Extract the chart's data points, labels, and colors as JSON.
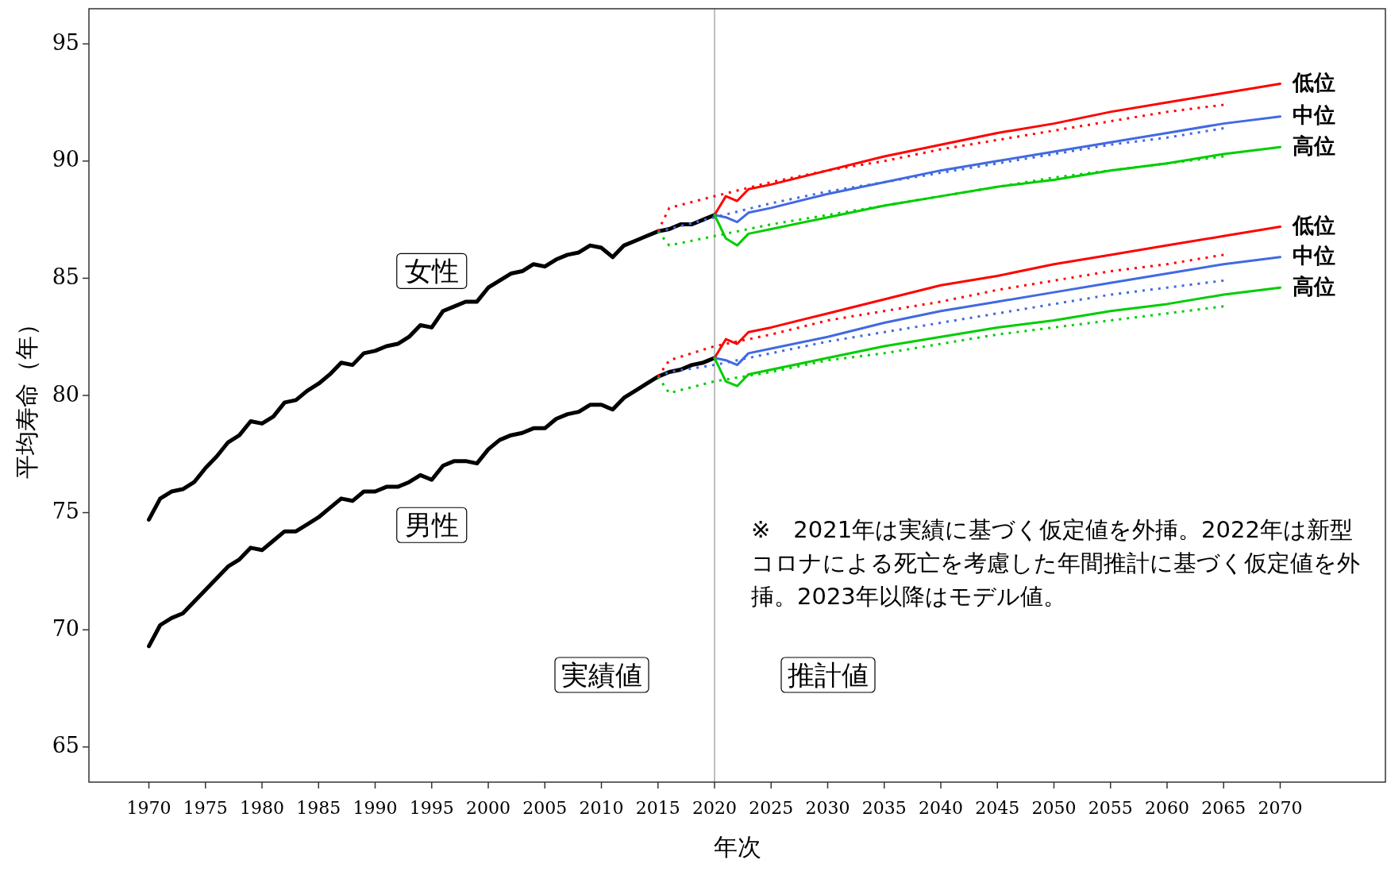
{
  "chart_data": {
    "type": "line",
    "xlabel": "年次",
    "ylabel": "平均寿命（年）",
    "xlim": [
      1964.7,
      2079.3
    ],
    "ylim": [
      63.5,
      96.5
    ],
    "xticks": [
      1970,
      1975,
      1980,
      1985,
      1990,
      1995,
      2000,
      2005,
      2010,
      2015,
      2020,
      2025,
      2030,
      2035,
      2040,
      2045,
      2050,
      2055,
      2060,
      2065,
      2070
    ],
    "yticks": [
      65,
      70,
      75,
      80,
      85,
      90,
      95
    ],
    "ref_lines": [
      {
        "axis": "x",
        "value": 2020,
        "color": "#bebebe"
      }
    ],
    "annotations": [
      "実績値",
      "推計値",
      "※　2021年は実績に基づく仮定値を外挿。2022年は新型コロナによる死亡を考慮した年間推計に基づく仮定値を外挿。2023年以降はモデル値。"
    ],
    "series": [
      {
        "name": "女性",
        "color": "#000000",
        "x": [
          1970,
          1971,
          1972,
          1973,
          1974,
          1975,
          1976,
          1977,
          1978,
          1979,
          1980,
          1981,
          1982,
          1983,
          1984,
          1985,
          1986,
          1987,
          1988,
          1989,
          1990,
          1991,
          1992,
          1993,
          1994,
          1995,
          1996,
          1997,
          1998,
          1999,
          2000,
          2001,
          2002,
          2003,
          2004,
          2005,
          2006,
          2007,
          2008,
          2009,
          2010,
          2011,
          2012,
          2013,
          2014,
          2015,
          2016,
          2017,
          2018,
          2019,
          2020
        ],
        "values": [
          74.7,
          75.6,
          75.9,
          76.0,
          76.3,
          76.9,
          77.4,
          78.0,
          78.3,
          78.9,
          78.8,
          79.1,
          79.7,
          79.8,
          80.2,
          80.5,
          80.9,
          81.4,
          81.3,
          81.8,
          81.9,
          82.1,
          82.2,
          82.5,
          83.0,
          82.9,
          83.6,
          83.8,
          84.0,
          84.0,
          84.6,
          84.9,
          85.2,
          85.3,
          85.6,
          85.5,
          85.8,
          86.0,
          86.1,
          86.4,
          86.3,
          85.9,
          86.4,
          86.6,
          86.8,
          87.0,
          87.1,
          87.3,
          87.3,
          87.5,
          87.7
        ]
      },
      {
        "name": "男性",
        "color": "#000000",
        "x": [
          1970,
          1971,
          1972,
          1973,
          1974,
          1975,
          1976,
          1977,
          1978,
          1979,
          1980,
          1981,
          1982,
          1983,
          1984,
          1985,
          1986,
          1987,
          1988,
          1989,
          1990,
          1991,
          1992,
          1993,
          1994,
          1995,
          1996,
          1997,
          1998,
          1999,
          2000,
          2001,
          2002,
          2003,
          2004,
          2005,
          2006,
          2007,
          2008,
          2009,
          2010,
          2011,
          2012,
          2013,
          2014,
          2015,
          2016,
          2017,
          2018,
          2019,
          2020
        ],
        "values": [
          69.3,
          70.2,
          70.5,
          70.7,
          71.2,
          71.7,
          72.2,
          72.7,
          73.0,
          73.5,
          73.4,
          73.8,
          74.2,
          74.2,
          74.5,
          74.8,
          75.2,
          75.6,
          75.5,
          75.9,
          75.9,
          76.1,
          76.1,
          76.3,
          76.6,
          76.4,
          77.0,
          77.2,
          77.2,
          77.1,
          77.7,
          78.1,
          78.3,
          78.4,
          78.6,
          78.6,
          79.0,
          79.2,
          79.3,
          79.6,
          79.6,
          79.4,
          79.9,
          80.2,
          80.5,
          80.8,
          81.0,
          81.1,
          81.3,
          81.4,
          81.6
        ]
      },
      {
        "color": "#ff0000",
        "line_style": "dotted",
        "x": [
          2015,
          2016,
          2020,
          2025,
          2030,
          2035,
          2040,
          2045,
          2050,
          2055,
          2060,
          2065
        ],
        "values": [
          87.0,
          88.0,
          88.5,
          89.1,
          89.6,
          90.0,
          90.5,
          90.9,
          91.3,
          91.7,
          92.1,
          92.4
        ]
      },
      {
        "color": "#4169e1",
        "line_style": "dotted",
        "x": [
          2015,
          2016,
          2020,
          2025,
          2030,
          2035,
          2040,
          2045,
          2050,
          2055,
          2060,
          2065
        ],
        "values": [
          87.0,
          87.1,
          87.6,
          88.2,
          88.7,
          89.1,
          89.5,
          89.9,
          90.3,
          90.7,
          91.0,
          91.4
        ]
      },
      {
        "color": "#00cd00",
        "line_style": "dotted",
        "x": [
          2015,
          2016,
          2020,
          2025,
          2030,
          2035,
          2040,
          2045,
          2050,
          2055,
          2060,
          2065
        ],
        "values": [
          87.0,
          86.4,
          86.8,
          87.3,
          87.7,
          88.1,
          88.5,
          88.9,
          89.3,
          89.6,
          89.9,
          90.2
        ]
      },
      {
        "color": "#ff0000",
        "line_style": "dotted",
        "x": [
          2015,
          2016,
          2020,
          2025,
          2030,
          2035,
          2040,
          2045,
          2050,
          2055,
          2060,
          2065
        ],
        "values": [
          80.8,
          81.5,
          82.1,
          82.6,
          83.2,
          83.6,
          84.0,
          84.5,
          84.9,
          85.3,
          85.6,
          86.0
        ]
      },
      {
        "color": "#4169e1",
        "line_style": "dotted",
        "x": [
          2015,
          2016,
          2020,
          2025,
          2030,
          2035,
          2040,
          2045,
          2050,
          2055,
          2060,
          2065
        ],
        "values": [
          80.8,
          81.0,
          81.3,
          81.8,
          82.3,
          82.7,
          83.1,
          83.5,
          83.9,
          84.3,
          84.6,
          84.9
        ]
      },
      {
        "color": "#00cd00",
        "line_style": "dotted",
        "x": [
          2015,
          2016,
          2020,
          2025,
          2030,
          2035,
          2040,
          2045,
          2050,
          2055,
          2060,
          2065
        ],
        "values": [
          80.8,
          80.1,
          80.6,
          81.0,
          81.5,
          81.8,
          82.2,
          82.6,
          82.9,
          83.2,
          83.5,
          83.8
        ]
      },
      {
        "name": "低位",
        "color": "#ff0000",
        "x": [
          2020,
          2021,
          2022,
          2023,
          2025,
          2030,
          2035,
          2040,
          2045,
          2050,
          2055,
          2060,
          2065,
          2070
        ],
        "values": [
          87.7,
          88.5,
          88.3,
          88.8,
          89.0,
          89.6,
          90.2,
          90.7,
          91.2,
          91.6,
          92.1,
          92.5,
          92.9,
          93.3
        ]
      },
      {
        "name": "中位",
        "color": "#4169e1",
        "x": [
          2020,
          2021,
          2022,
          2023,
          2025,
          2030,
          2035,
          2040,
          2045,
          2050,
          2055,
          2060,
          2065,
          2070
        ],
        "values": [
          87.7,
          87.6,
          87.4,
          87.8,
          88.0,
          88.6,
          89.1,
          89.6,
          90.0,
          90.4,
          90.8,
          91.2,
          91.6,
          91.9
        ]
      },
      {
        "name": "高位",
        "color": "#00cd00",
        "x": [
          2020,
          2021,
          2022,
          2023,
          2025,
          2030,
          2035,
          2040,
          2045,
          2050,
          2055,
          2060,
          2065,
          2070
        ],
        "values": [
          87.7,
          86.7,
          86.4,
          86.9,
          87.1,
          87.6,
          88.1,
          88.5,
          88.9,
          89.2,
          89.6,
          89.9,
          90.3,
          90.6
        ]
      },
      {
        "name": "低位",
        "color": "#ff0000",
        "x": [
          2020,
          2021,
          2022,
          2023,
          2025,
          2030,
          2035,
          2040,
          2045,
          2050,
          2055,
          2060,
          2065,
          2070
        ],
        "values": [
          81.6,
          82.4,
          82.2,
          82.7,
          82.9,
          83.5,
          84.1,
          84.7,
          85.1,
          85.6,
          86.0,
          86.4,
          86.8,
          87.2
        ]
      },
      {
        "name": "中位",
        "color": "#4169e1",
        "x": [
          2020,
          2021,
          2022,
          2023,
          2025,
          2030,
          2035,
          2040,
          2045,
          2050,
          2055,
          2060,
          2065,
          2070
        ],
        "values": [
          81.6,
          81.5,
          81.3,
          81.8,
          82.0,
          82.5,
          83.1,
          83.6,
          84.0,
          84.4,
          84.8,
          85.2,
          85.6,
          85.9
        ]
      },
      {
        "name": "高位",
        "color": "#00cd00",
        "x": [
          2020,
          2021,
          2022,
          2023,
          2025,
          2030,
          2035,
          2040,
          2045,
          2050,
          2055,
          2060,
          2065,
          2070
        ],
        "values": [
          81.6,
          80.6,
          80.4,
          80.9,
          81.1,
          81.6,
          82.1,
          82.5,
          82.9,
          83.2,
          83.6,
          83.9,
          84.3,
          84.6
        ]
      }
    ]
  }
}
